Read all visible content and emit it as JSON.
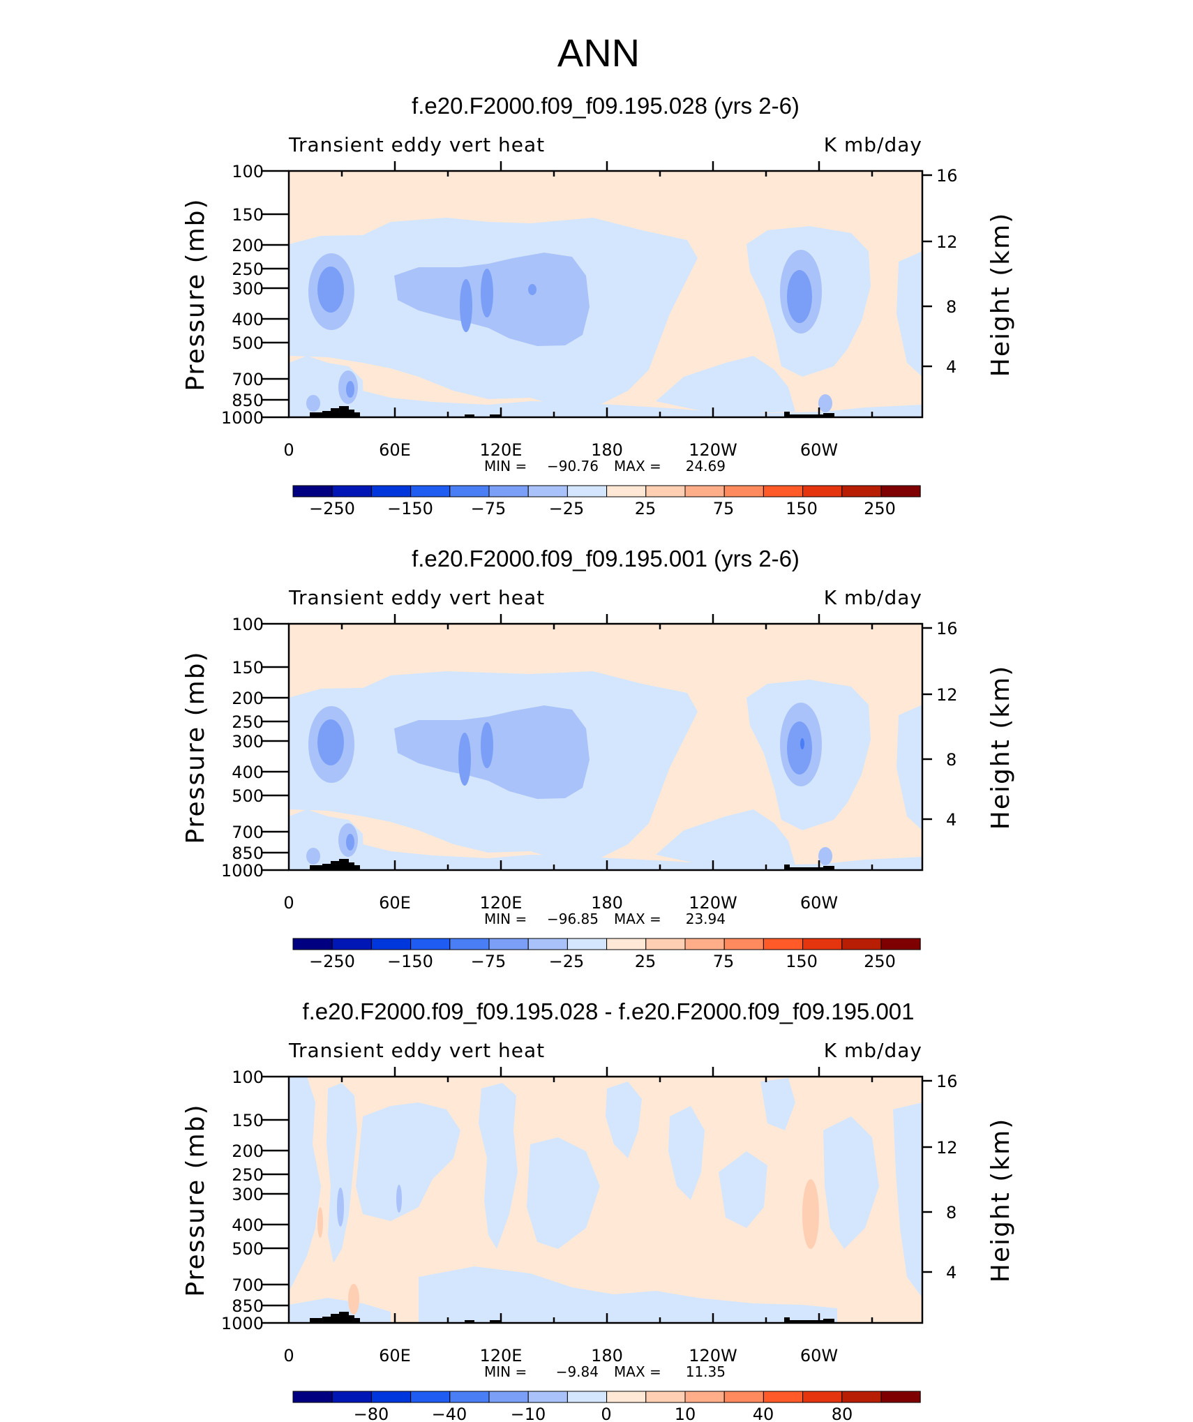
{
  "figure_title": "ANN",
  "colors": {
    "full_scale": [
      "#000080",
      "#0017b6",
      "#0037dd",
      "#1f5cf1",
      "#4a7ef5",
      "#7b9ff7",
      "#a9c2f9",
      "#d4e6fd",
      "#ffe9d6",
      "#ffcfb4",
      "#ffae89",
      "#ff8a5e",
      "#ff5a27",
      "#e5350e",
      "#b81e04",
      "#7f0000"
    ],
    "bands": {
      "m25_0": "#d4e6fd",
      "m75_m25": "#a9c2f9",
      "m150_m75": "#7b9ff7",
      "0_25": "#ffe9d6",
      "25_75": "#ffcfb4",
      "land": "#000000"
    }
  },
  "chart_data": [
    {
      "type": "heatmap",
      "title": "f.e20.F2000.f09_f09.195.028 (yrs 2-6)",
      "left_label": "Transient eddy vert heat",
      "right_label": "K mb/day",
      "ylabel": "Pressure (mb)",
      "ylabel_right": "Height (km)",
      "x_ticks": [
        "0",
        "60E",
        "120E",
        "180",
        "120W",
        "60W"
      ],
      "x_tick_values": [
        0,
        60,
        120,
        180,
        240,
        300
      ],
      "xlim": [
        0,
        360
      ],
      "y_ticks": [
        "100",
        "150",
        "200",
        "250",
        "300",
        "400",
        "500",
        "700",
        "850",
        "1000"
      ],
      "y_tick_values": [
        100,
        150,
        200,
        250,
        300,
        400,
        500,
        700,
        850,
        1000
      ],
      "ylim": [
        1000,
        100
      ],
      "y_scale": "log",
      "y_right_ticks": [
        "16",
        "12",
        "8",
        "4"
      ],
      "min_label": "MIN =",
      "min": "-90.76",
      "max_label": "MAX =",
      "max": "24.69",
      "colorbar_levels": [
        -300,
        -250,
        -200,
        -150,
        -100,
        -75,
        -50,
        -25,
        0,
        25,
        50,
        75,
        100,
        150,
        200,
        250,
        300
      ],
      "colorbar_labels": [
        "-250",
        "-150",
        "-75",
        "-25",
        "25",
        "75",
        "150",
        "250"
      ]
    },
    {
      "type": "heatmap",
      "title": "f.e20.F2000.f09_f09.195.001 (yrs 2-6)",
      "left_label": "Transient eddy vert heat",
      "right_label": "K mb/day",
      "ylabel": "Pressure (mb)",
      "ylabel_right": "Height (km)",
      "x_ticks": [
        "0",
        "60E",
        "120E",
        "180",
        "120W",
        "60W"
      ],
      "x_tick_values": [
        0,
        60,
        120,
        180,
        240,
        300
      ],
      "xlim": [
        0,
        360
      ],
      "y_ticks": [
        "100",
        "150",
        "200",
        "250",
        "300",
        "400",
        "500",
        "700",
        "850",
        "1000"
      ],
      "y_tick_values": [
        100,
        150,
        200,
        250,
        300,
        400,
        500,
        700,
        850,
        1000
      ],
      "ylim": [
        1000,
        100
      ],
      "y_scale": "log",
      "y_right_ticks": [
        "16",
        "12",
        "8",
        "4"
      ],
      "min_label": "MIN =",
      "min": "-96.85",
      "max_label": "MAX =",
      "max": "23.94",
      "colorbar_levels": [
        -300,
        -250,
        -200,
        -150,
        -100,
        -75,
        -50,
        -25,
        0,
        25,
        50,
        75,
        100,
        150,
        200,
        250,
        300
      ],
      "colorbar_labels": [
        "-250",
        "-150",
        "-75",
        "-25",
        "25",
        "75",
        "150",
        "250"
      ]
    },
    {
      "type": "heatmap",
      "title": "f.e20.F2000.f09_f09.195.028 - f.e20.F2000.f09_f09.195.001",
      "left_label": "Transient eddy vert heat",
      "right_label": "K mb/day",
      "ylabel": "Pressure (mb)",
      "ylabel_right": "Height (km)",
      "x_ticks": [
        "0",
        "60E",
        "120E",
        "180",
        "120W",
        "60W"
      ],
      "x_tick_values": [
        0,
        60,
        120,
        180,
        240,
        300
      ],
      "xlim": [
        0,
        360
      ],
      "y_ticks": [
        "100",
        "150",
        "200",
        "250",
        "300",
        "400",
        "500",
        "700",
        "850",
        "1000"
      ],
      "y_tick_values": [
        100,
        150,
        200,
        250,
        300,
        400,
        500,
        700,
        850,
        1000
      ],
      "ylim": [
        1000,
        100
      ],
      "y_scale": "log",
      "y_right_ticks": [
        "16",
        "12",
        "8",
        "4"
      ],
      "min_label": "MIN =",
      "min": "-9.84",
      "max_label": "MAX =",
      "max": "11.35",
      "colorbar_levels": [
        -100,
        -80,
        -60,
        -40,
        -20,
        -10,
        -5,
        0,
        0,
        5,
        10,
        20,
        40,
        60,
        80,
        100
      ],
      "colorbar_labels": [
        "-80",
        "-40",
        "-10",
        "0",
        "10",
        "40",
        "80"
      ]
    }
  ]
}
